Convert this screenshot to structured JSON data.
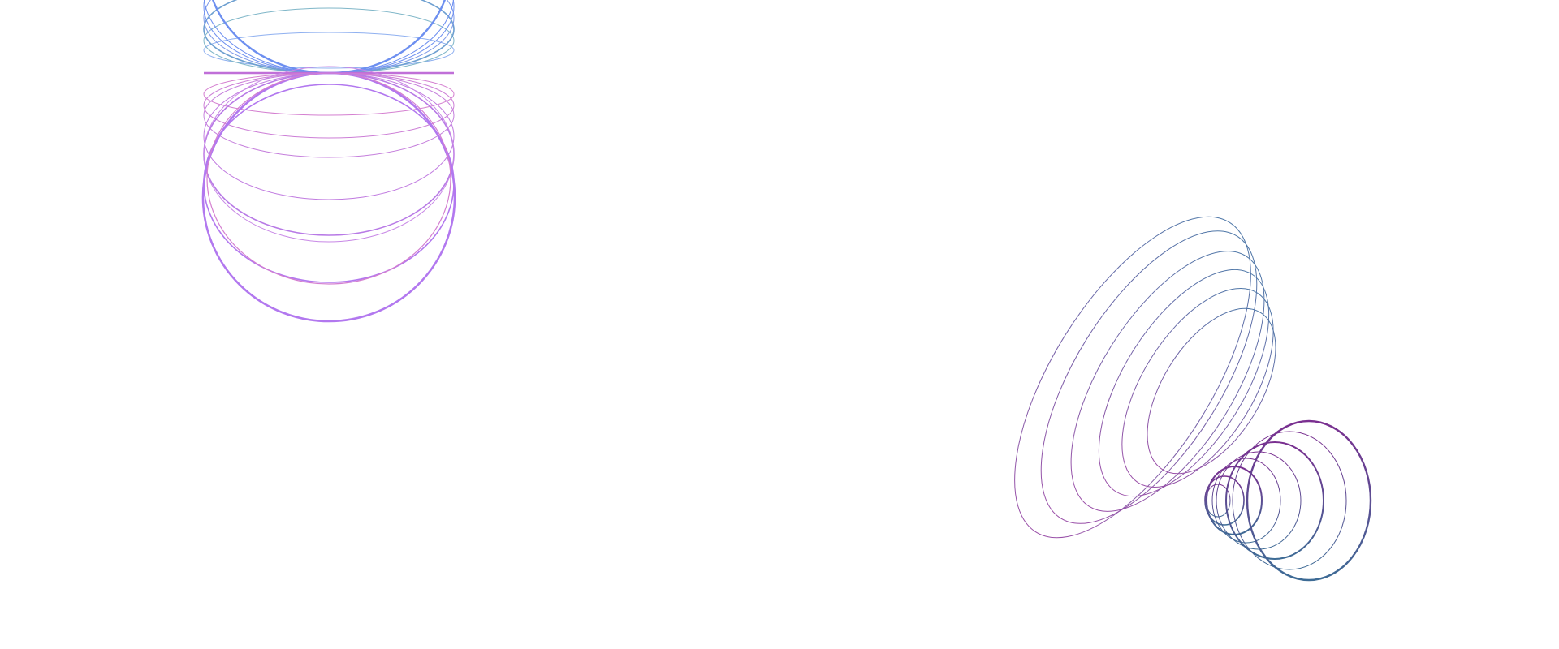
{
  "canvas": {
    "background": "#ffffff"
  },
  "artwork": {
    "left_cluster": {
      "description_shape": "stacked ellipse rings mirrored about a horizontal line",
      "top_half_colors": [
        "#6d8ff0",
        "#7fb6c8"
      ],
      "bottom_half_colors": [
        "#d47fd0",
        "#b278ef"
      ],
      "divider_color": "#c06fd8"
    },
    "right_cluster": {
      "large_rings_colors": [
        "#4f78a8",
        "#9a4fa8"
      ],
      "small_rings_colors": [
        "#7a2f90",
        "#3d6b95"
      ]
    }
  }
}
